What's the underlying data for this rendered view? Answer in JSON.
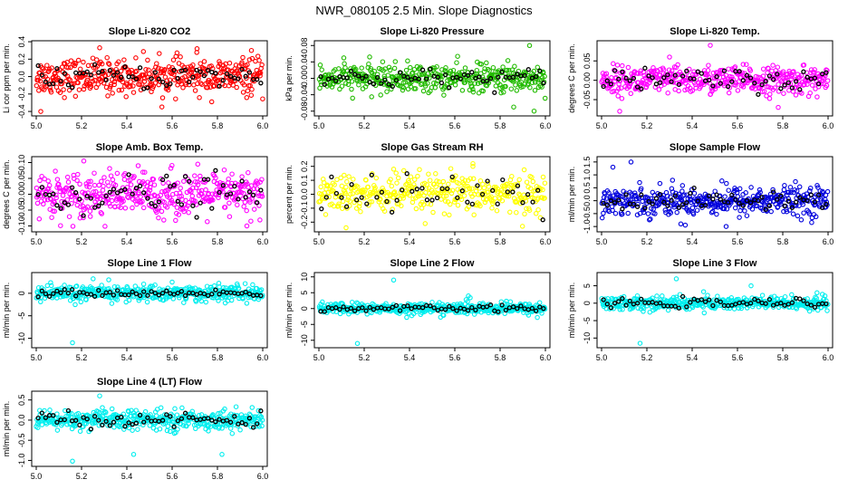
{
  "figure_title": "NWR_080105  2.5 Min. Slope Diagnostics",
  "colors": {
    "red": "#ff0000",
    "green": "#22bb00",
    "magenta": "#ff00ff",
    "yellow": "#ffff00",
    "blue": "#0000dd",
    "cyan": "#00eeee",
    "overlay": "#000000"
  },
  "chart_data": [
    {
      "type": "scatter",
      "title": "Slope Li-820 CO2",
      "ylabel": "Li cor ppm per min.",
      "color": "red",
      "xlim": [
        5.0,
        6.0
      ],
      "ylim": [
        -0.42,
        0.38
      ],
      "yticks": [
        -0.4,
        -0.2,
        0.0,
        0.2,
        0.4
      ],
      "ytick_labels": [
        "-0.4",
        "-0.2",
        "0.0",
        "0.2",
        "0.4"
      ],
      "xticks": [
        5.0,
        5.2,
        5.4,
        5.6,
        5.8,
        6.0
      ],
      "xtick_labels": [
        "5.0",
        "5.2",
        "5.4",
        "5.6",
        "5.8",
        "6.0"
      ],
      "n_points": 420,
      "spread": 0.1,
      "n_overlay": 60,
      "overlay_spread": 0.07,
      "outliers": [
        [
          5.02,
          -0.4
        ],
        [
          5.28,
          0.33
        ],
        [
          5.71,
          0.32
        ],
        [
          5.95,
          0.3
        ]
      ]
    },
    {
      "type": "scatter",
      "title": "Slope Li-820 Pressure",
      "ylabel": "kPa per min.",
      "color": "green",
      "xlim": [
        5.0,
        6.0
      ],
      "ylim": [
        -0.085,
        0.085
      ],
      "yticks": [
        -0.08,
        -0.04,
        0.0,
        0.04,
        0.08
      ],
      "ytick_labels": [
        "-0.08",
        "-0.04",
        "0.00",
        "0.04",
        "0.08"
      ],
      "xticks": [
        5.0,
        5.2,
        5.4,
        5.6,
        5.8,
        6.0
      ],
      "xtick_labels": [
        "5.0",
        "5.2",
        "5.4",
        "5.6",
        "5.8",
        "6.0"
      ],
      "n_points": 420,
      "spread": 0.017,
      "n_overlay": 60,
      "overlay_spread": 0.012,
      "outliers": [
        [
          5.93,
          0.08
        ],
        [
          5.95,
          -0.08
        ],
        [
          5.86,
          -0.07
        ],
        [
          5.11,
          0.05
        ]
      ]
    },
    {
      "type": "scatter",
      "title": "Slope Li-820 Temp.",
      "ylabel": "degrees C per min.",
      "color": "magenta",
      "xlim": [
        5.0,
        6.0
      ],
      "ylim": [
        -0.085,
        0.095
      ],
      "yticks": [
        -0.05,
        0.0,
        0.05
      ],
      "ytick_labels": [
        "-0.05",
        "0.00",
        "0.05"
      ],
      "xticks": [
        5.0,
        5.2,
        5.4,
        5.6,
        5.8,
        6.0
      ],
      "xtick_labels": [
        "5.0",
        "5.2",
        "5.4",
        "5.6",
        "5.8",
        "6.0"
      ],
      "n_points": 420,
      "spread": 0.018,
      "n_overlay": 60,
      "overlay_spread": 0.014,
      "outliers": [
        [
          5.48,
          0.09
        ],
        [
          5.08,
          -0.08
        ],
        [
          5.78,
          -0.07
        ],
        [
          5.3,
          0.06
        ]
      ]
    },
    {
      "type": "scatter",
      "title": "Slope Amb. Box Temp.",
      "ylabel": "degrees C per min.",
      "color": "magenta",
      "xlim": [
        5.0,
        6.0
      ],
      "ylim": [
        -0.11,
        0.11
      ],
      "yticks": [
        -0.1,
        -0.05,
        0.0,
        0.05,
        0.1
      ],
      "ytick_labels": [
        "-0.10",
        "-0.05",
        "0.00",
        "0.05",
        "0.10"
      ],
      "xticks": [
        5.0,
        5.2,
        5.4,
        5.6,
        5.8,
        6.0
      ],
      "xtick_labels": [
        "5.0",
        "5.2",
        "5.4",
        "5.6",
        "5.8",
        "6.0"
      ],
      "n_points": 420,
      "spread": 0.035,
      "n_overlay": 60,
      "overlay_spread": 0.03,
      "outliers": [
        [
          5.21,
          0.105
        ],
        [
          5.93,
          -0.1
        ],
        [
          5.45,
          0.09
        ]
      ]
    },
    {
      "type": "scatter",
      "title": "Slope Gas Stream RH",
      "ylabel": "percent per min.",
      "color": "yellow",
      "xlim": [
        5.0,
        6.0
      ],
      "ylim": [
        -0.25,
        0.25
      ],
      "yticks": [
        -0.2,
        -0.1,
        0.0,
        0.1,
        0.2
      ],
      "ytick_labels": [
        "-0.2",
        "-0.1",
        "0.0",
        "0.1",
        "0.2"
      ],
      "xticks": [
        5.0,
        5.2,
        5.4,
        5.6,
        5.8,
        6.0
      ],
      "xtick_labels": [
        "5.0",
        "5.2",
        "5.4",
        "5.6",
        "5.8",
        "6.0"
      ],
      "n_points": 380,
      "spread": 0.07,
      "n_overlay": 45,
      "overlay_spread": 0.07,
      "outliers": [
        [
          5.12,
          -0.24
        ],
        [
          5.68,
          0.2
        ],
        [
          5.33,
          0.18
        ]
      ]
    },
    {
      "type": "scatter",
      "title": "Slope Sample Flow",
      "ylabel": "ml/min per min.",
      "color": "blue",
      "xlim": [
        5.0,
        6.0
      ],
      "ylim": [
        -1.1,
        1.6
      ],
      "yticks": [
        -1.0,
        -0.5,
        0.0,
        0.5,
        1.0,
        1.5
      ],
      "ytick_labels": [
        "-1.0",
        "-0.5",
        "0.0",
        "0.5",
        "1.0",
        "1.5"
      ],
      "xticks": [
        5.0,
        5.2,
        5.4,
        5.6,
        5.8,
        6.0
      ],
      "xtick_labels": [
        "5.0",
        "5.2",
        "5.4",
        "5.6",
        "5.8",
        "6.0"
      ],
      "n_points": 420,
      "spread": 0.28,
      "n_overlay": 60,
      "overlay_spread": 0.18,
      "outliers": [
        [
          5.13,
          1.5
        ],
        [
          5.05,
          1.3
        ],
        [
          5.55,
          -1.0
        ],
        [
          5.35,
          -0.9
        ]
      ]
    },
    {
      "type": "scatter",
      "title": "Slope Line 1 Flow",
      "ylabel": "ml/min per min.",
      "color": "cyan",
      "xlim": [
        5.0,
        6.0
      ],
      "ylim": [
        -11.5,
        4
      ],
      "yticks": [
        -10,
        -5,
        0
      ],
      "ytick_labels": [
        "-10",
        "-5",
        "0"
      ],
      "xticks": [
        5.0,
        5.2,
        5.4,
        5.6,
        5.8,
        6.0
      ],
      "xtick_labels": [
        "5.0",
        "5.2",
        "5.4",
        "5.6",
        "5.8",
        "6.0"
      ],
      "n_points": 420,
      "spread": 0.9,
      "n_overlay": 60,
      "overlay_spread": 0.35,
      "outliers": [
        [
          5.16,
          -11.0
        ],
        [
          5.32,
          3.0
        ],
        [
          5.6,
          2.5
        ]
      ]
    },
    {
      "type": "scatter",
      "title": "Slope Line 2 Flow",
      "ylabel": "ml/min per min.",
      "color": "cyan",
      "xlim": [
        5.0,
        6.0
      ],
      "ylim": [
        -11.5,
        10.5
      ],
      "yticks": [
        -10,
        -5,
        0,
        5,
        10
      ],
      "ytick_labels": [
        "-10",
        "-5",
        "0",
        "5",
        "10"
      ],
      "xticks": [
        5.0,
        5.2,
        5.4,
        5.6,
        5.8,
        6.0
      ],
      "xtick_labels": [
        "5.0",
        "5.2",
        "5.4",
        "5.6",
        "5.8",
        "6.0"
      ],
      "n_points": 420,
      "spread": 0.9,
      "n_overlay": 60,
      "overlay_spread": 0.5,
      "outliers": [
        [
          5.17,
          -11.0
        ],
        [
          5.33,
          9.0
        ],
        [
          5.66,
          4.0
        ],
        [
          5.65,
          2.8
        ]
      ]
    },
    {
      "type": "scatter",
      "title": "Slope Line 3 Flow",
      "ylabel": "ml/min per min.",
      "color": "cyan",
      "xlim": [
        5.0,
        6.0
      ],
      "ylim": [
        -12,
        8
      ],
      "yticks": [
        -10,
        -5,
        0,
        5
      ],
      "ytick_labels": [
        "-10",
        "-5",
        "0",
        "5"
      ],
      "xticks": [
        5.0,
        5.2,
        5.4,
        5.6,
        5.8,
        6.0
      ],
      "xtick_labels": [
        "5.0",
        "5.2",
        "5.4",
        "5.6",
        "5.8",
        "6.0"
      ],
      "n_points": 420,
      "spread": 1.0,
      "n_overlay": 60,
      "overlay_spread": 0.6,
      "outliers": [
        [
          5.17,
          -11.5
        ],
        [
          5.33,
          7.0
        ],
        [
          5.66,
          5.0
        ]
      ]
    },
    {
      "type": "scatter",
      "title": "Slope Line 4 (LT) Flow",
      "ylabel": "ml/min per min.",
      "color": "cyan",
      "xlim": [
        5.0,
        6.0
      ],
      "ylim": [
        -1.08,
        0.65
      ],
      "yticks": [
        -1.0,
        -0.5,
        0.0,
        0.5
      ],
      "ytick_labels": [
        "-1.0",
        "-0.5",
        "0.0",
        "0.5"
      ],
      "xticks": [
        5.0,
        5.2,
        5.4,
        5.6,
        5.8,
        6.0
      ],
      "xtick_labels": [
        "5.0",
        "5.2",
        "5.4",
        "5.6",
        "5.8",
        "6.0"
      ],
      "n_points": 420,
      "spread": 0.12,
      "n_overlay": 60,
      "overlay_spread": 0.09,
      "outliers": [
        [
          5.16,
          -1.02
        ],
        [
          5.43,
          -0.85
        ],
        [
          5.82,
          -0.85
        ],
        [
          5.28,
          0.6
        ]
      ]
    }
  ]
}
